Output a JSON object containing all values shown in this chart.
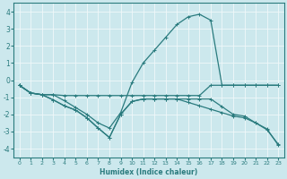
{
  "xlabel": "Humidex (Indice chaleur)",
  "xlim": [
    -0.5,
    23.5
  ],
  "ylim": [
    -4.5,
    4.5
  ],
  "xticks": [
    0,
    1,
    2,
    3,
    4,
    5,
    6,
    7,
    8,
    9,
    10,
    11,
    12,
    13,
    14,
    15,
    16,
    17,
    18,
    19,
    20,
    21,
    22,
    23
  ],
  "yticks": [
    -4,
    -3,
    -2,
    -1,
    0,
    1,
    2,
    3,
    4
  ],
  "background_color": "#cce8ed",
  "grid_color": "#f0f8fa",
  "line_color": "#2a7b7e",
  "line1_x": [
    0,
    1,
    2,
    3,
    4,
    5,
    6,
    7,
    8,
    9,
    10,
    11,
    12,
    13,
    14,
    15,
    16,
    17,
    18,
    19,
    20,
    21,
    22,
    23
  ],
  "line1_y": [
    -0.3,
    -0.75,
    -0.85,
    -0.85,
    -0.9,
    -0.9,
    -0.9,
    -0.9,
    -0.9,
    -0.9,
    -0.9,
    -0.9,
    -0.9,
    -0.9,
    -0.9,
    -0.9,
    -0.9,
    -0.3,
    -0.3,
    -0.3,
    -0.3,
    -0.3,
    -0.3,
    -0.3
  ],
  "line2_x": [
    0,
    1,
    2,
    3,
    4,
    5,
    6,
    7,
    8,
    9,
    10,
    11,
    12,
    13,
    14,
    15,
    16,
    17,
    18,
    19,
    20,
    21,
    22,
    23
  ],
  "line2_y": [
    -0.3,
    -0.75,
    -0.85,
    -0.85,
    -1.2,
    -1.6,
    -2.0,
    -2.5,
    -2.8,
    -1.9,
    -0.15,
    1.0,
    1.75,
    2.5,
    3.25,
    3.7,
    3.85,
    3.5,
    -0.3,
    -0.3,
    -0.3,
    -0.3,
    -0.3,
    -0.3
  ],
  "line3_x": [
    0,
    1,
    2,
    3,
    4,
    5,
    6,
    7,
    8,
    9,
    10,
    11,
    12,
    13,
    14,
    15,
    16,
    17,
    18,
    19,
    20,
    21,
    22,
    23
  ],
  "line3_y": [
    -0.3,
    -0.75,
    -0.85,
    -1.15,
    -1.5,
    -1.75,
    -2.2,
    -2.8,
    -3.35,
    -2.0,
    -1.25,
    -1.1,
    -1.1,
    -1.1,
    -1.1,
    -1.1,
    -1.1,
    -1.1,
    -1.55,
    -2.0,
    -2.1,
    -2.5,
    -2.9,
    -3.75
  ],
  "line4_x": [
    0,
    1,
    2,
    3,
    4,
    5,
    6,
    7,
    8,
    9,
    10,
    11,
    12,
    13,
    14,
    15,
    16,
    17,
    18,
    19,
    20,
    21,
    22,
    23
  ],
  "line4_y": [
    -0.3,
    -0.75,
    -0.85,
    -1.15,
    -1.5,
    -1.75,
    -2.2,
    -2.8,
    -3.35,
    -2.0,
    -1.25,
    -1.1,
    -1.1,
    -1.1,
    -1.1,
    -1.3,
    -1.5,
    -1.7,
    -1.9,
    -2.1,
    -2.2,
    -2.5,
    -2.85,
    -3.8
  ]
}
